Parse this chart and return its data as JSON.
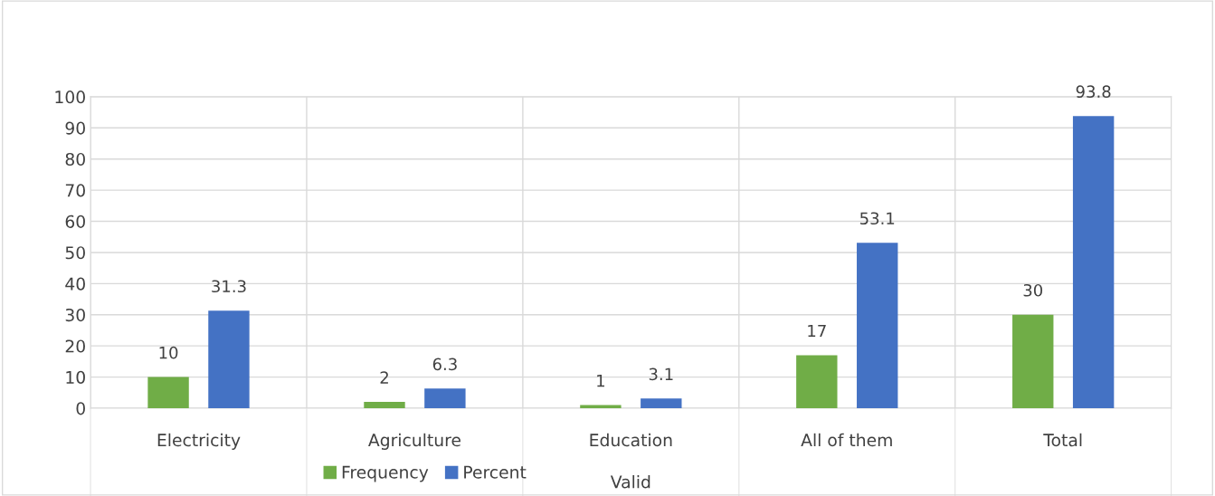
{
  "chart_data": {
    "type": "bar",
    "categories": [
      "Electricity",
      "Agriculture",
      "Education",
      "All of them",
      "Total"
    ],
    "series": [
      {
        "name": "Frequency",
        "color": "#70ad47",
        "values": [
          10,
          2,
          1,
          17,
          30
        ]
      },
      {
        "name": "Percent",
        "color": "#4472c4",
        "values": [
          31.3,
          6.3,
          3.1,
          53.1,
          93.8
        ]
      }
    ],
    "xlabel": "Valid",
    "ylim": [
      0,
      100
    ],
    "yticks": [
      0,
      10,
      20,
      30,
      40,
      50,
      60,
      70,
      80,
      90,
      100
    ],
    "grid": true,
    "legend": "bottom",
    "data_labels": true
  }
}
